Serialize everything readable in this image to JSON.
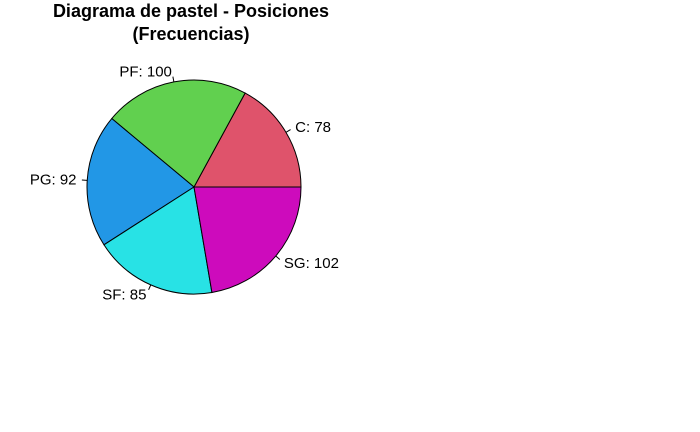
{
  "chart_data": {
    "type": "pie",
    "title_lines": [
      "Diagrama de pastel - Posiciones",
      "(Frecuencias)"
    ],
    "slices": [
      {
        "label": "C: 78",
        "value": 78,
        "color": "#DF536B"
      },
      {
        "label": "PF: 100",
        "value": 100,
        "color": "#61D04F"
      },
      {
        "label": "PG: 92",
        "value": 92,
        "color": "#2297E6"
      },
      {
        "label": "SF: 85",
        "value": 85,
        "color": "#28E2E5"
      },
      {
        "label": "SG: 102",
        "value": 102,
        "color": "#CD0BBC"
      }
    ],
    "start_angle_deg": 0,
    "direction": "counterclockwise"
  }
}
